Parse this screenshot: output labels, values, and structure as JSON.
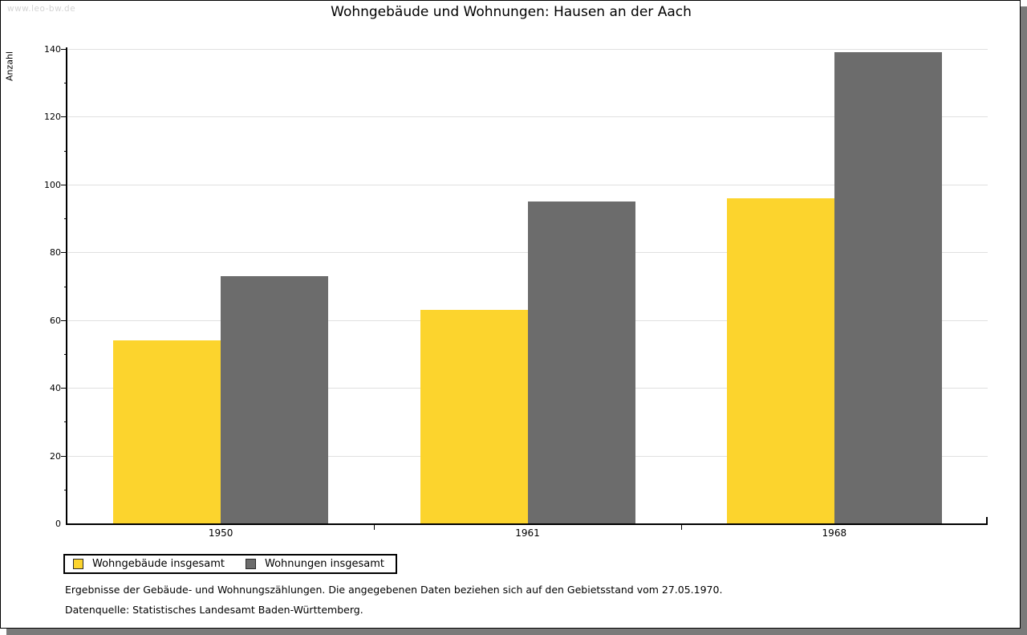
{
  "watermark": "www.leo-bw.de",
  "title": "Wohngebäude und Wohnungen: Hausen an der Aach",
  "chart_data": {
    "type": "bar",
    "title": "Wohngebäude und Wohnungen: Hausen an der Aach",
    "ylabel": "Anzahl",
    "xlabel": "",
    "categories": [
      "1950",
      "1961",
      "1968"
    ],
    "series": [
      {
        "name": "Wohngebäude insgesamt",
        "color": "#FCD42D",
        "values": [
          54,
          63,
          96
        ]
      },
      {
        "name": "Wohnungen insgesamt",
        "color": "#6C6C6C",
        "values": [
          73,
          95,
          139
        ]
      }
    ],
    "ylim": [
      0,
      140
    ],
    "ytick_step": 20,
    "yminor_step": 10,
    "grid": true,
    "legend_position": "bottom-left"
  },
  "footnotes": {
    "line1": "Ergebnisse der Gebäude- und Wohnungszählungen. Die angegebenen Daten beziehen sich auf den Gebietsstand vom 27.05.1970.",
    "line2": "Datenquelle: Statistisches Landesamt Baden-Württemberg."
  },
  "colors": {
    "gridline": "#E0E0E0",
    "shadow": "#7A7A7A",
    "watermark": "#D4D4D4",
    "axis": "#000000"
  }
}
